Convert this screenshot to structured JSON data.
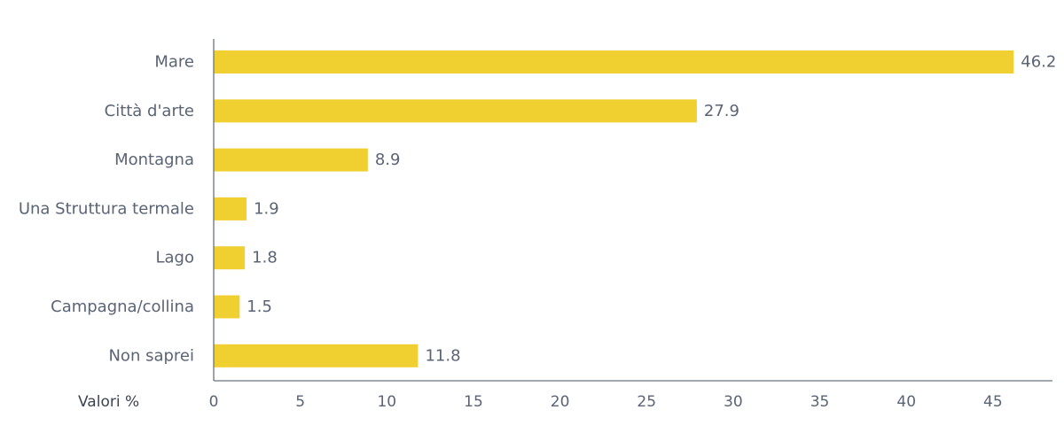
{
  "chart_data": {
    "type": "bar",
    "orientation": "horizontal",
    "title": "",
    "xlabel": "Valori %",
    "ylabel": "",
    "categories": [
      "Mare",
      "Città d'arte",
      "Montagna",
      "Una Struttura termale",
      "Lago",
      "Campagna/collina",
      "Non saprei"
    ],
    "values": [
      46.2,
      27.9,
      8.9,
      1.9,
      1.8,
      1.5,
      11.8
    ],
    "value_labels": [
      "46.2",
      "27.9",
      "8.9",
      "1.9",
      "1.8",
      "1.5",
      "11.8"
    ],
    "xlim": [
      0,
      48
    ],
    "xticks": [
      0,
      5,
      10,
      15,
      20,
      25,
      30,
      35,
      40,
      45
    ],
    "xtick_labels": [
      "0",
      "5",
      "10",
      "15",
      "20",
      "25",
      "30",
      "35",
      "40",
      "45"
    ],
    "grid": false,
    "legend": "none",
    "colors": {
      "bar": "#f0d030",
      "axis": "#6b7380",
      "text": "#5a6475"
    }
  }
}
